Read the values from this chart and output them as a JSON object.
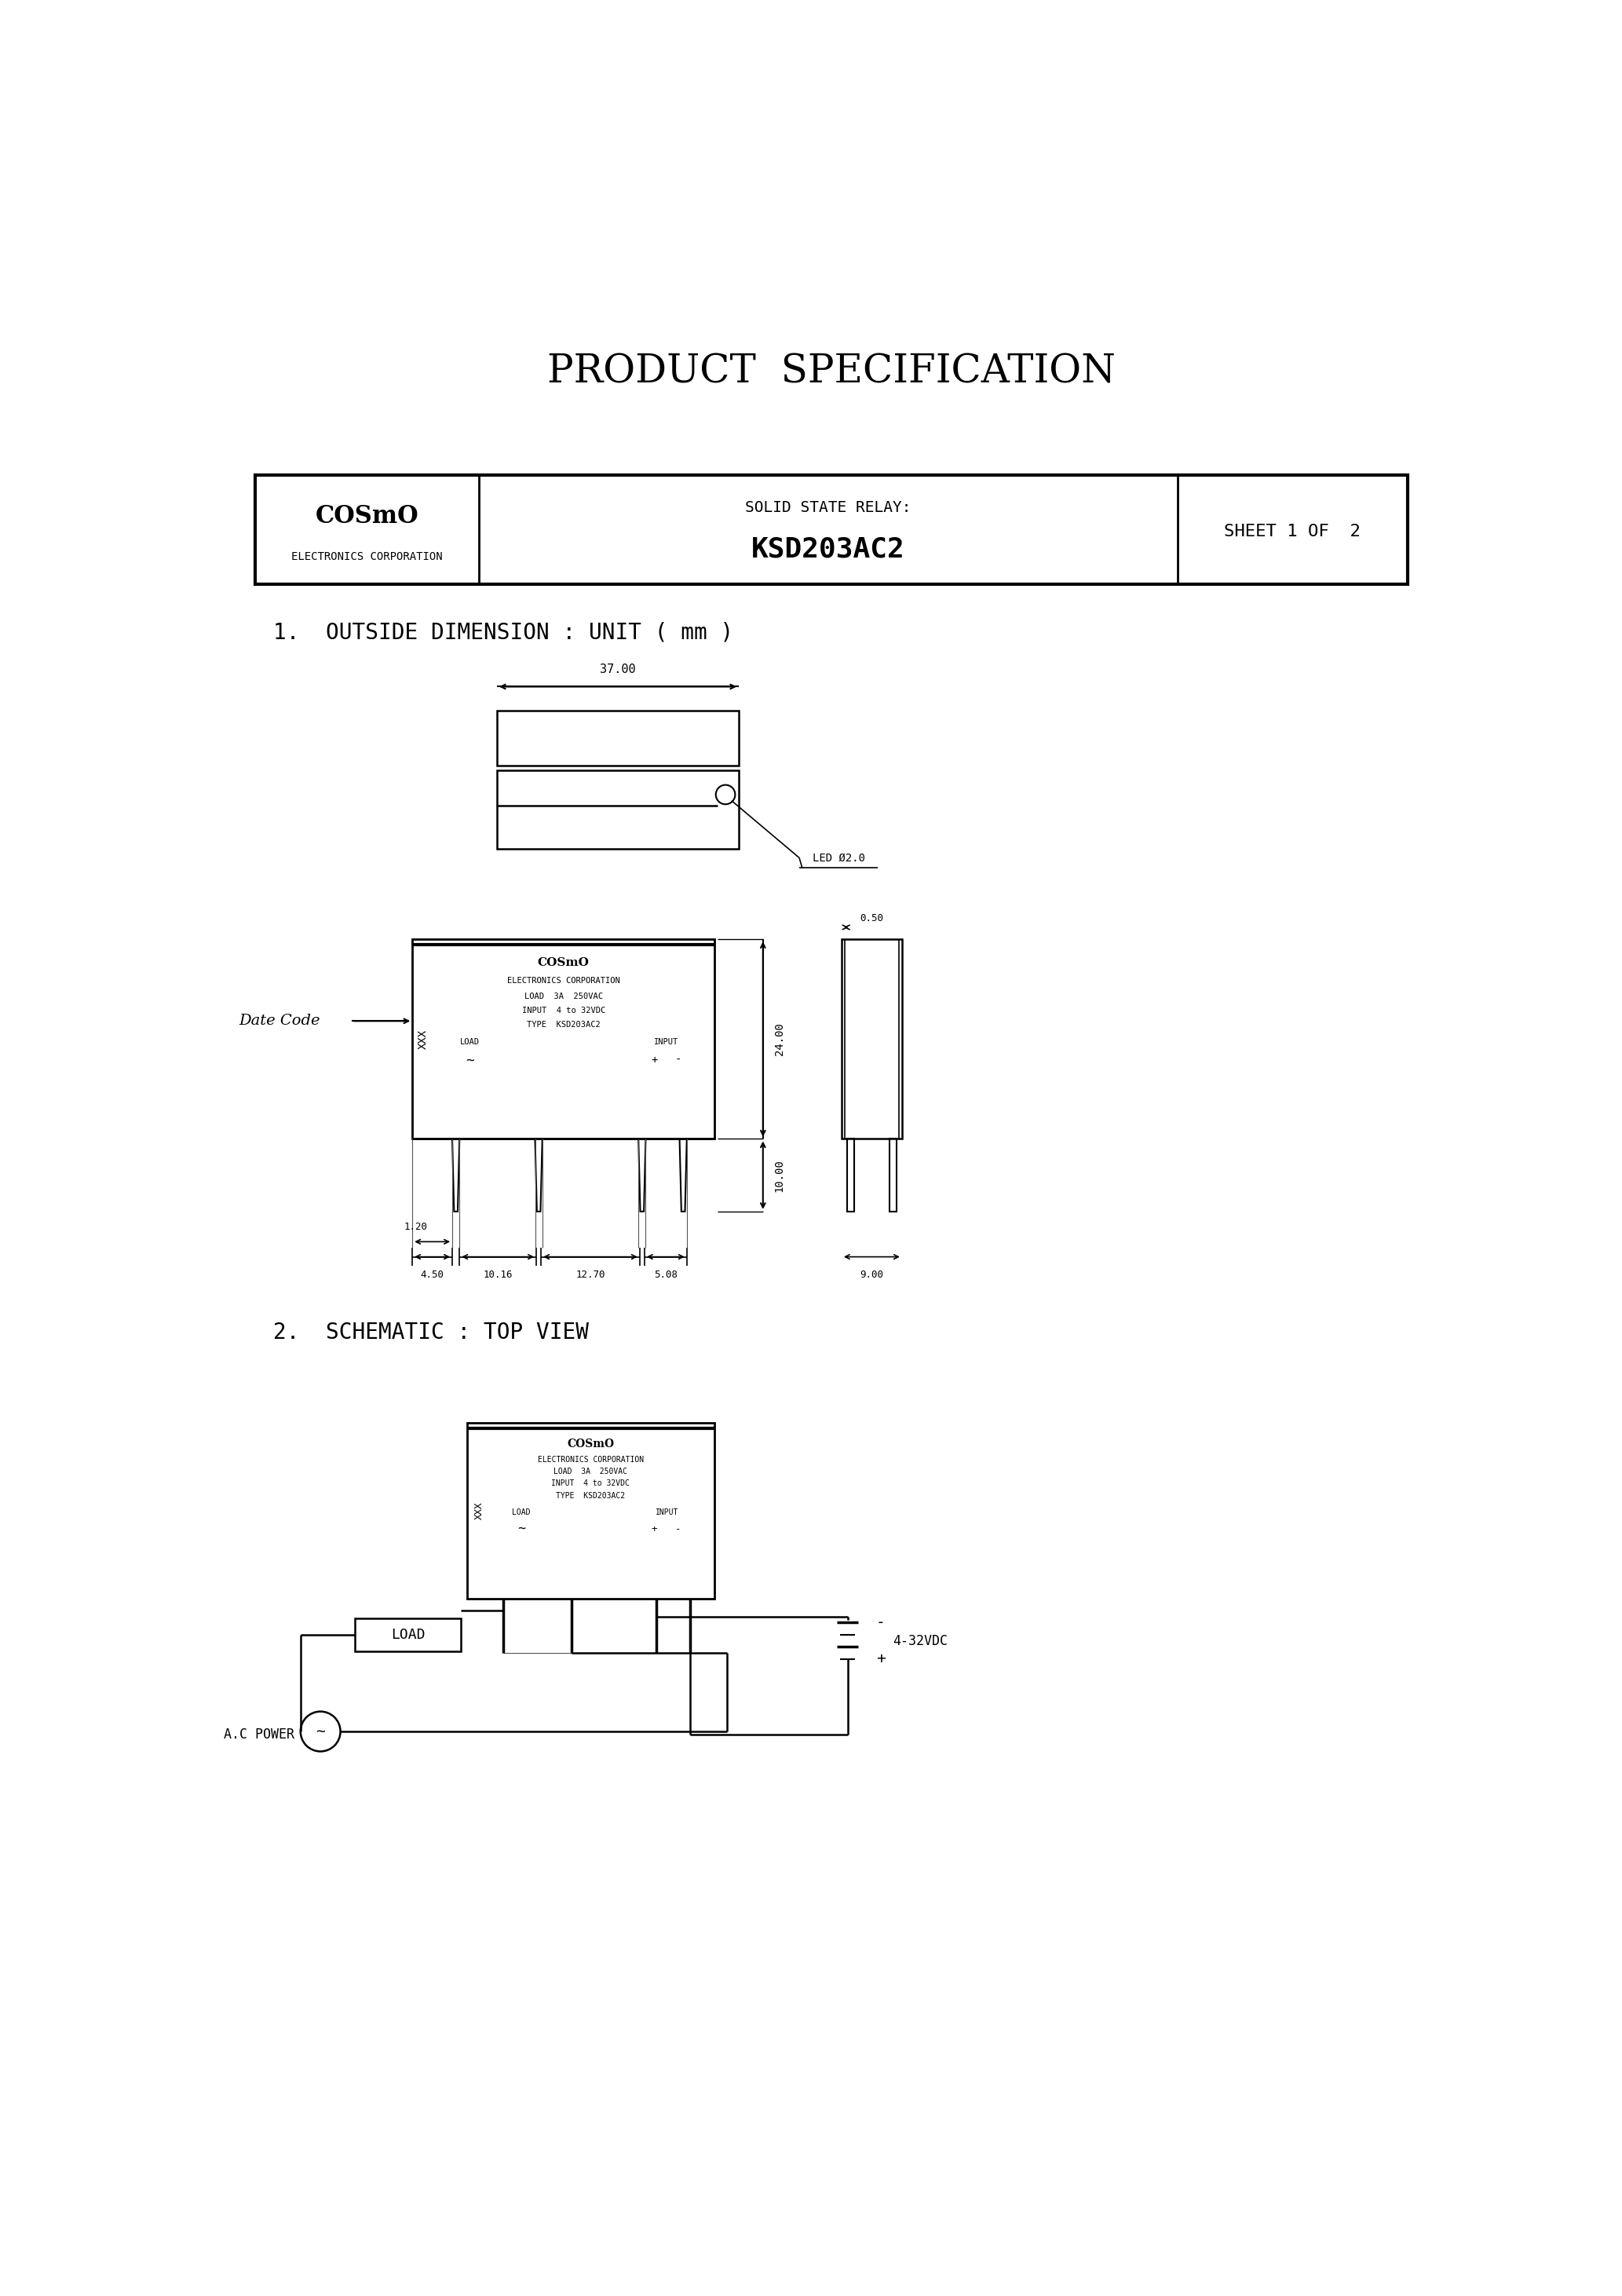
{
  "title": "PRODUCT  SPECIFICATION",
  "company_name": "COSmO",
  "company_sub": "ELECTRONICS CORPORATION",
  "relay_label": "SOLID STATE RELAY:",
  "relay_model": "KSD203AC2",
  "sheet_info": "SHEET 1 OF  2",
  "section1": "1.  OUTSIDE DIMENSION : UNIT ( mm )",
  "section2": "2.  SCHEMATIC : TOP VIEW",
  "led_label": "LED Ø2.0",
  "date_code_label": "Date Code",
  "dim_37": "37.00",
  "dim_24": "24.00",
  "dim_10": "10.00",
  "dim_450": "4.50",
  "dim_1016": "10.16",
  "dim_1270": "12.70",
  "dim_508": "5.08",
  "dim_120": "1.20",
  "dim_050": "0.50",
  "dim_900": "9.00",
  "bg_color": "#ffffff",
  "line_color": "#000000",
  "font_color": "#000000",
  "title_fontsize": 36,
  "section_fontsize": 20,
  "body_fontsize": 10
}
